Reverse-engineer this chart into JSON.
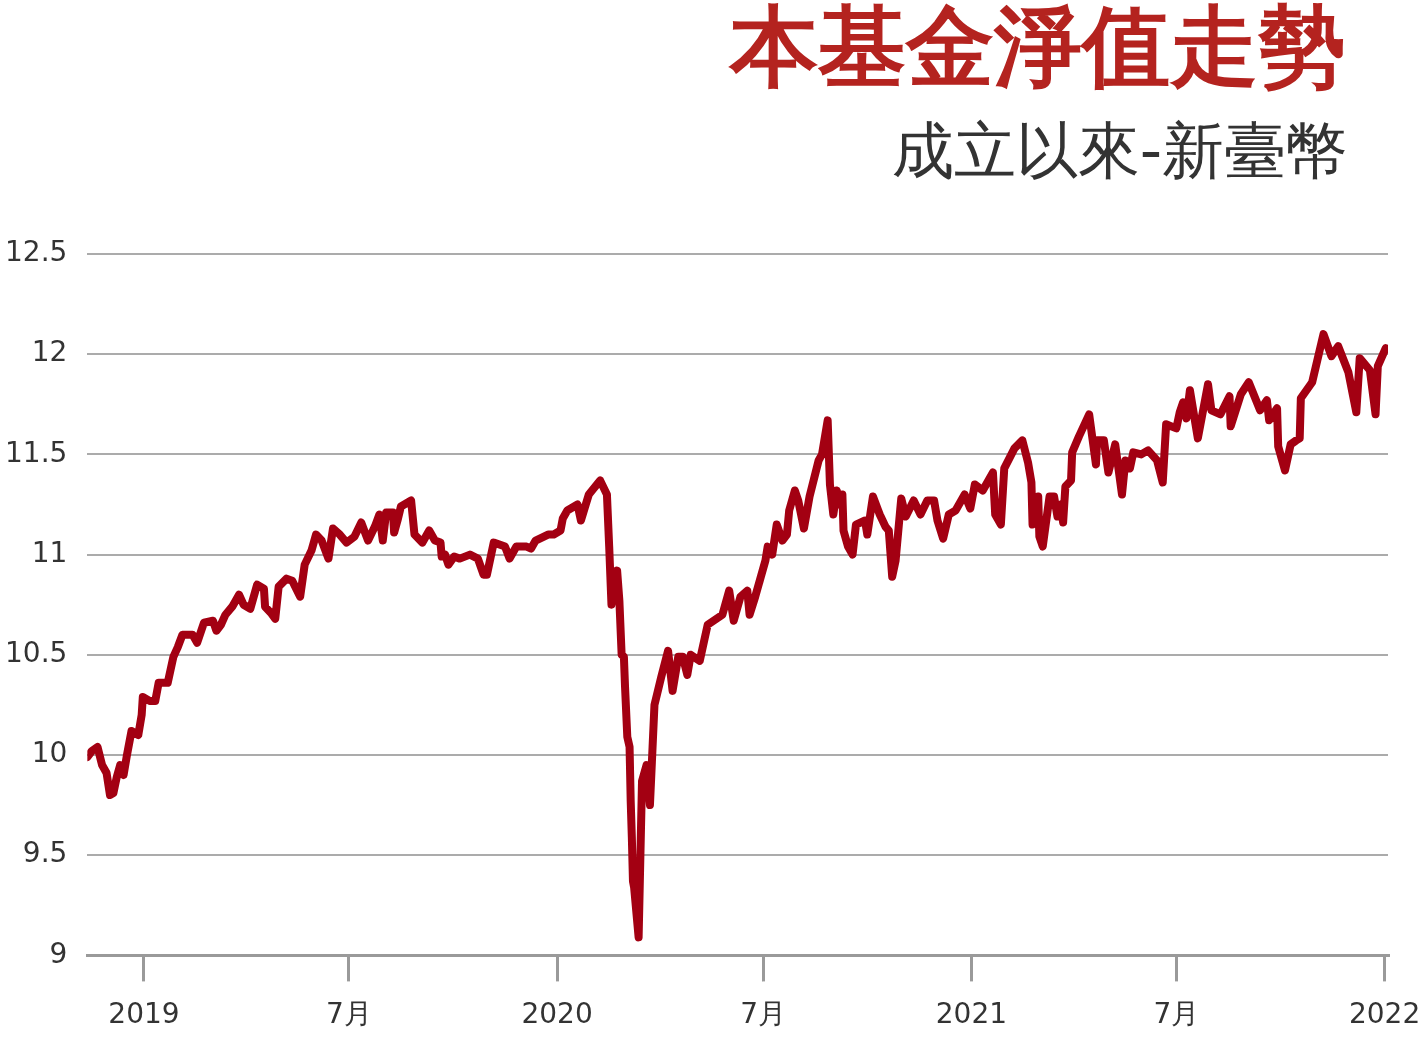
{
  "chart_data": {
    "type": "line",
    "title": "本基金淨值走勢",
    "subtitle": "成立以來-新臺幣",
    "x": [
      "2018-11-12",
      "2018-11-16",
      "2018-11-21",
      "2018-11-25",
      "2018-11-29",
      "2018-12-02",
      "2018-12-05",
      "2018-12-08",
      "2018-12-11",
      "2018-12-14",
      "2018-12-17",
      "2018-12-21",
      "2018-12-27",
      "2018-12-30",
      "2018-12-31",
      "2019-01-06",
      "2019-01-11",
      "2019-01-14",
      "2019-01-22",
      "2019-01-27",
      "2019-01-31",
      "2019-02-04",
      "2019-02-13",
      "2019-02-17",
      "2019-02-23",
      "2019-03-03",
      "2019-03-06",
      "2019-03-10",
      "2019-03-14",
      "2019-03-20",
      "2019-03-26",
      "2019-03-30",
      "2019-04-05",
      "2019-04-11",
      "2019-04-17",
      "2019-04-18",
      "2019-04-23",
      "2019-04-27",
      "2019-04-30",
      "2019-05-07",
      "2019-05-12",
      "2019-05-19",
      "2019-05-23",
      "2019-05-29",
      "2019-06-02",
      "2019-06-07",
      "2019-06-13",
      "2019-06-17",
      "2019-06-23",
      "2019-06-29",
      "2019-07-06",
      "2019-07-12",
      "2019-07-18",
      "2019-07-24",
      "2019-07-28",
      "2019-07-31",
      "2019-08-03",
      "2019-08-09",
      "2019-08-10",
      "2019-08-13",
      "2019-08-16",
      "2019-08-25",
      "2019-08-28",
      "2019-09-04",
      "2019-09-10",
      "2019-09-15",
      "2019-09-20",
      "2019-09-21",
      "2019-09-24",
      "2019-09-27",
      "2019-10-02",
      "2019-10-07",
      "2019-10-16",
      "2019-10-23",
      "2019-10-28",
      "2019-10-31",
      "2019-11-06",
      "2019-11-16",
      "2019-11-20",
      "2019-11-26",
      "2019-12-05",
      "2019-12-09",
      "2019-12-13",
      "2019-12-24",
      "2019-12-29",
      "2020-01-04",
      "2020-01-06",
      "2020-01-10",
      "2020-01-16",
      "2020-01-19",
      "2020-01-22",
      "2020-01-29",
      "2020-02-08",
      "2020-02-14",
      "2020-02-16",
      "2020-02-18",
      "2020-02-23",
      "2020-02-25",
      "2020-02-27",
      "2020-02-29",
      "2020-03-01",
      "2020-03-03",
      "2020-03-05",
      "2020-03-06",
      "2020-03-07",
      "2020-03-08",
      "2020-03-09",
      "2020-03-13",
      "2020-03-16",
      "2020-03-20",
      "2020-03-23",
      "2020-03-27",
      "2020-04-02",
      "2020-04-08",
      "2020-04-12",
      "2020-04-17",
      "2020-04-21",
      "2020-04-25",
      "2020-04-28",
      "2020-05-06",
      "2020-05-13",
      "2020-05-26",
      "2020-06-01",
      "2020-06-05",
      "2020-06-11",
      "2020-06-17",
      "2020-06-19",
      "2020-06-24",
      "2020-06-29",
      "2020-07-03",
      "2020-07-05",
      "2020-07-09",
      "2020-07-13",
      "2020-07-18",
      "2020-07-22",
      "2020-07-24",
      "2020-07-29",
      "2020-08-01",
      "2020-08-06",
      "2020-08-11",
      "2020-08-19",
      "2020-08-22",
      "2020-08-27",
      "2020-08-29",
      "2020-09-01",
      "2020-09-04",
      "2020-09-07",
      "2020-09-09",
      "2020-09-10",
      "2020-09-14",
      "2020-09-18",
      "2020-09-21",
      "2020-09-29",
      "2020-10-01",
      "2020-10-06",
      "2020-10-12",
      "2020-10-17",
      "2020-10-20",
      "2020-10-23",
      "2020-10-26",
      "2020-10-31",
      "2020-11-04",
      "2020-11-11",
      "2020-11-17",
      "2020-11-23",
      "2020-11-29",
      "2020-12-02",
      "2020-12-07",
      "2020-12-12",
      "2020-12-18",
      "2020-12-26",
      "2020-12-31",
      "2021-01-04",
      "2021-01-11",
      "2021-01-20",
      "2021-01-22",
      "2021-01-27",
      "2021-01-30",
      "2021-02-08",
      "2021-02-15",
      "2021-02-20",
      "2021-02-23",
      "2021-02-24",
      "2021-03-01",
      "2021-03-02",
      "2021-03-05",
      "2021-03-11",
      "2021-03-15",
      "2021-03-18",
      "2021-03-21",
      "2021-03-23",
      "2021-03-25",
      "2021-03-30",
      "2021-03-31",
      "2021-04-06",
      "2021-04-15",
      "2021-04-21",
      "2021-04-22",
      "2021-04-28",
      "2021-05-02",
      "2021-05-08",
      "2021-05-14",
      "2021-05-17",
      "2021-05-21",
      "2021-05-24",
      "2021-05-31",
      "2021-06-06",
      "2021-06-14",
      "2021-06-19",
      "2021-06-22",
      "2021-07-01",
      "2021-07-04",
      "2021-07-07",
      "2021-07-10",
      "2021-07-13",
      "2021-07-20",
      "2021-07-29",
      "2021-08-01",
      "2021-08-09",
      "2021-08-17",
      "2021-08-18",
      "2021-08-27",
      "2021-09-03",
      "2021-09-13",
      "2021-09-19",
      "2021-09-21",
      "2021-09-28",
      "2021-09-29",
      "2021-10-05",
      "2021-10-10",
      "2021-10-15",
      "2021-10-18",
      "2021-10-19",
      "2021-10-29",
      "2021-11-08",
      "2021-11-15",
      "2021-11-21",
      "2021-11-30",
      "2021-12-07",
      "2021-12-10",
      "2021-12-19",
      "2021-12-24",
      "2021-12-26",
      "2022-01-02"
    ],
    "series": [
      {
        "color": "#a30012",
        "values": [
          9.99,
          10.02,
          10.04,
          9.95,
          9.91,
          9.8,
          9.81,
          9.89,
          9.95,
          9.9,
          10.0,
          10.12,
          10.1,
          10.2,
          10.29,
          10.27,
          10.27,
          10.36,
          10.36,
          10.49,
          10.54,
          10.6,
          10.6,
          10.56,
          10.66,
          10.67,
          10.62,
          10.65,
          10.7,
          10.74,
          10.8,
          10.75,
          10.73,
          10.85,
          10.83,
          10.74,
          10.71,
          10.68,
          10.84,
          10.88,
          10.87,
          10.79,
          10.95,
          11.02,
          11.1,
          11.07,
          10.98,
          11.13,
          11.1,
          11.06,
          11.09,
          11.16,
          11.07,
          11.14,
          11.2,
          11.07,
          11.21,
          11.21,
          11.11,
          11.17,
          11.24,
          11.27,
          11.1,
          11.06,
          11.12,
          11.07,
          11.06,
          10.99,
          11.0,
          10.95,
          10.99,
          10.98,
          11.0,
          10.98,
          10.9,
          10.9,
          11.06,
          11.04,
          10.98,
          11.04,
          11.04,
          11.03,
          11.07,
          11.1,
          11.1,
          11.12,
          11.18,
          11.22,
          11.24,
          11.25,
          11.17,
          11.3,
          11.37,
          11.3,
          11.04,
          10.75,
          10.92,
          10.77,
          10.5,
          10.49,
          10.34,
          10.09,
          10.04,
          9.77,
          9.59,
          9.37,
          9.34,
          9.09,
          9.87,
          9.95,
          9.75,
          10.25,
          10.39,
          10.52,
          10.32,
          10.49,
          10.49,
          10.4,
          10.5,
          10.47,
          10.65,
          10.7,
          10.82,
          10.67,
          10.79,
          10.82,
          10.7,
          10.79,
          10.89,
          10.97,
          11.04,
          11.0,
          11.15,
          11.07,
          11.1,
          11.22,
          11.32,
          11.27,
          11.13,
          11.29,
          11.47,
          11.5,
          11.67,
          11.35,
          11.2,
          11.32,
          11.25,
          11.3,
          11.12,
          11.04,
          11.0,
          11.15,
          11.17,
          11.1,
          11.29,
          11.2,
          11.14,
          11.12,
          10.89,
          10.97,
          11.28,
          11.19,
          11.27,
          11.2,
          11.27,
          11.27,
          11.17,
          11.08,
          11.2,
          11.22,
          11.3,
          11.23,
          11.35,
          11.32,
          11.41,
          11.2,
          11.15,
          11.43,
          11.53,
          11.57,
          11.46,
          11.36,
          11.15,
          11.29,
          11.09,
          11.04,
          11.29,
          11.29,
          11.19,
          11.25,
          11.16,
          11.34,
          11.37,
          11.51,
          11.59,
          11.7,
          11.45,
          11.57,
          11.57,
          11.41,
          11.55,
          11.3,
          11.47,
          11.43,
          11.51,
          11.5,
          11.52,
          11.47,
          11.36,
          11.65,
          11.63,
          11.71,
          11.76,
          11.68,
          11.82,
          11.58,
          11.85,
          11.72,
          11.7,
          11.79,
          11.64,
          11.8,
          11.86,
          11.72,
          11.77,
          11.67,
          11.73,
          11.54,
          11.42,
          11.55,
          11.57,
          11.58,
          11.78,
          11.86,
          12.1,
          11.99,
          12.04,
          11.91,
          11.71,
          11.98,
          11.92,
          11.7,
          11.94,
          12.03
        ]
      }
    ],
    "xlim": [
      "2018-11-12",
      "2022-01-04"
    ],
    "xticks": [
      "2019",
      {
        "value": "2019-07",
        "label": "7月"
      },
      "2020",
      {
        "value": "2020-07",
        "label": "7月"
      },
      "2021",
      {
        "value": "2021-07",
        "label": "7月"
      },
      "2022"
    ],
    "ylim": [
      9,
      12.5
    ],
    "yticks": [
      9,
      9.5,
      10,
      10.5,
      11,
      11.5,
      12,
      12.5
    ],
    "grid": "y"
  }
}
